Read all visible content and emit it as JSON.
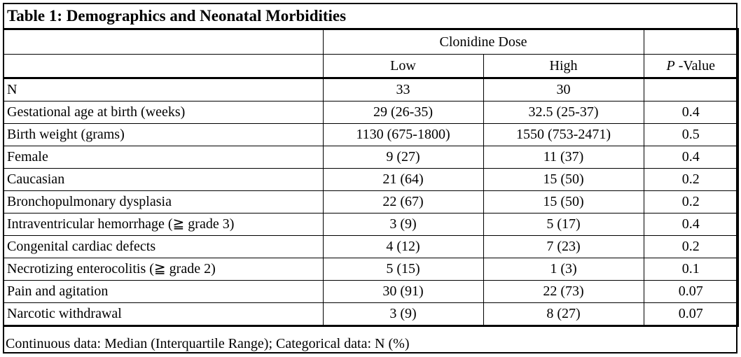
{
  "title": "Table 1: Demographics and Neonatal Morbidities",
  "header": {
    "group": "Clonidine Dose",
    "low": "Low",
    "high": "High",
    "p_italic": "P",
    "p_rest": " -Value"
  },
  "rows": [
    {
      "label": "N",
      "low": "33",
      "high": "30",
      "p": ""
    },
    {
      "label": "Gestational age at birth (weeks)",
      "low": "29 (26-35)",
      "high": "32.5 (25-37)",
      "p": "0.4"
    },
    {
      "label": "Birth weight (grams)",
      "low": "1130 (675-1800)",
      "high": "1550 (753-2471)",
      "p": "0.5"
    },
    {
      "label": "Female",
      "low": "9 (27)",
      "high": "11 (37)",
      "p": "0.4"
    },
    {
      "label": "Caucasian",
      "low": "21 (64)",
      "high": "15 (50)",
      "p": "0.2"
    },
    {
      "label": "Bronchopulmonary dysplasia",
      "low": "22 (67)",
      "high": "15 (50)",
      "p": "0.2"
    },
    {
      "label": "Intraventricular hemorrhage (≧ grade 3)",
      "low": "3 (9)",
      "high": "5 (17)",
      "p": "0.4"
    },
    {
      "label": "Congenital cardiac defects",
      "low": "4 (12)",
      "high": "7 (23)",
      "p": "0.2"
    },
    {
      "label": "Necrotizing enterocolitis (≧ grade 2)",
      "low": "5 (15)",
      "high": "1 (3)",
      "p": "0.1"
    },
    {
      "label": "Pain and agitation",
      "low": "30 (91)",
      "high": "22 (73)",
      "p": "0.07"
    },
    {
      "label": "Narcotic withdrawal",
      "low": "3 (9)",
      "high": "8 (27)",
      "p": "0.07"
    }
  ],
  "footnote": "Continuous data: Median (Interquartile Range); Categorical data: N (%)"
}
